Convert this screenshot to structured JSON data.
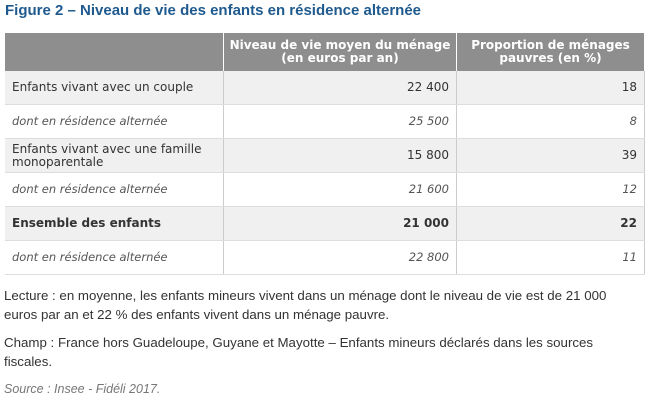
{
  "header": {
    "title": "Figure 2 – Niveau de vie des enfants en résidence alternée"
  },
  "table": {
    "columns": [
      "Niveau de vie moyen du ménage\n(en euros par an)",
      "Proportion de ménages\npauvres (en %)"
    ],
    "rows": [
      [
        "Enfants vivant avec un couple",
        "22 400",
        "18"
      ],
      [
        "dont en résidence alternée",
        "25 500",
        "8"
      ],
      [
        "Enfants vivant avec une famille\nmonoparentale",
        "15 800",
        "39"
      ],
      [
        "dont en résidence alternée",
        "21 600",
        "12"
      ],
      [
        "Ensemble des enfants",
        "21 000",
        "22"
      ],
      [
        "dont en résidence alternée",
        "22 800",
        "11"
      ]
    ]
  },
  "notes": {
    "lecture": "Lecture : en moyenne, les enfants mineurs vivent dans un ménage dont le niveau de vie est de 21 000 euros par an et 22 % des enfants vivent dans un ménage pauvre.",
    "champ": "Champ : France hors Guadeloupe, Guyane et Mayotte – Enfants mineurs déclarés dans les sources fiscales.",
    "source": "Source : Insee - Fidéli 2017."
  }
}
